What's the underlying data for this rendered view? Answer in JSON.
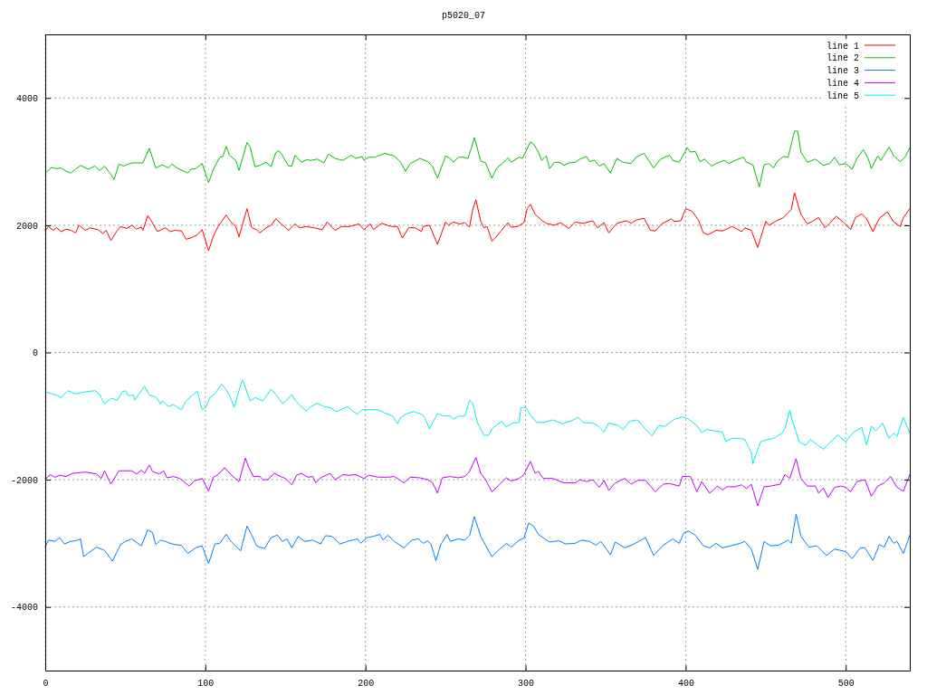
{
  "chart_data": {
    "type": "line",
    "title": "p5020_07",
    "xlim": [
      0,
      540
    ],
    "ylim": [
      -5000,
      5000
    ],
    "xticks": [
      0,
      100,
      200,
      300,
      400,
      500
    ],
    "yticks": [
      -4000,
      -2000,
      0,
      2000,
      4000
    ],
    "grid": true,
    "legend": "top right",
    "series": [
      {
        "name": "line 1",
        "color": "#ff0000",
        "x": [
          0,
          2,
          5,
          7,
          10,
          13,
          16,
          19,
          21,
          25,
          28,
          33,
          36,
          38,
          41,
          45,
          47,
          51,
          54,
          57,
          60,
          61,
          64,
          66,
          70,
          75,
          78,
          81,
          85,
          88,
          92,
          95,
          98,
          102,
          105,
          108,
          113,
          116,
          119,
          121,
          126,
          129,
          132,
          134,
          136,
          138,
          141,
          144,
          147,
          152,
          156,
          159,
          163,
          168,
          173,
          176,
          181,
          185,
          190,
          196,
          199,
          203,
          205,
          210,
          216,
          220,
          223,
          227,
          231,
          235,
          236,
          240,
          245,
          250,
          252,
          255,
          259,
          262,
          265,
          267,
          269,
          272,
          274,
          276,
          279,
          281,
          285,
          289,
          291,
          295,
          299,
          301,
          303,
          306,
          310,
          313,
          318,
          322,
          327,
          331,
          336,
          342,
          345,
          349,
          352,
          357,
          363,
          366,
          369,
          374,
          378,
          381,
          385,
          391,
          393,
          397,
          400,
          404,
          408,
          411,
          414,
          419,
          423,
          429,
          435,
          437,
          441,
          445,
          450,
          452,
          456,
          461,
          466,
          468,
          472,
          476,
          479,
          483,
          487,
          490,
          494,
          499,
          503,
          506,
          510,
          513,
          517,
          521,
          526,
          530,
          534,
          536,
          540
        ],
        "values": [
          1910,
          1980,
          1920,
          1960,
          1900,
          1940,
          1920,
          1880,
          2000,
          1920,
          1960,
          1930,
          1870,
          1920,
          1760,
          1920,
          1980,
          1950,
          2000,
          1940,
          1970,
          1920,
          2150,
          2080,
          1900,
          1960,
          1900,
          1920,
          1910,
          1780,
          1810,
          1850,
          1930,
          1600,
          1830,
          1980,
          2160,
          2050,
          1980,
          1820,
          2260,
          1960,
          1930,
          1880,
          1920,
          1960,
          2000,
          2100,
          2030,
          1920,
          2020,
          1960,
          1980,
          1960,
          1930,
          2050,
          1920,
          1980,
          1980,
          2020,
          1930,
          2020,
          1930,
          2030,
          1980,
          1980,
          1800,
          1960,
          1960,
          1900,
          1980,
          2000,
          1700,
          2050,
          2000,
          2050,
          2020,
          2040,
          1970,
          2250,
          2400,
          2060,
          1960,
          1980,
          1750,
          1800,
          1920,
          2040,
          1970,
          1980,
          2040,
          2260,
          2330,
          2170,
          2080,
          2030,
          2000,
          2040,
          1950,
          2050,
          2030,
          2070,
          1960,
          2040,
          1880,
          2030,
          2070,
          2030,
          2080,
          2110,
          1920,
          1910,
          2020,
          2100,
          2060,
          2070,
          2260,
          2220,
          2080,
          1880,
          1850,
          1920,
          1910,
          1980,
          1900,
          1960,
          1920,
          1650,
          2060,
          2000,
          2060,
          2120,
          2250,
          2510,
          2170,
          2020,
          2060,
          2120,
          1960,
          2030,
          2140,
          2040,
          1930,
          2120,
          2180,
          2100,
          1900,
          2110,
          2210,
          2050,
          1980,
          2120,
          2260
        ]
      },
      {
        "name": "line 2",
        "color": "#00c000",
        "x": [
          0,
          4,
          7,
          10,
          13,
          16,
          22,
          27,
          31,
          34,
          37,
          40,
          43,
          46,
          49,
          54,
          61,
          65,
          69,
          73,
          77,
          79,
          83,
          89,
          91,
          94,
          98,
          102,
          105,
          109,
          111,
          113,
          115,
          119,
          121,
          126,
          128,
          131,
          134,
          138,
          141,
          144,
          146,
          148,
          152,
          154,
          156,
          160,
          163,
          166,
          170,
          174,
          177,
          181,
          186,
          191,
          194,
          198,
          199,
          202,
          206,
          212,
          218,
          222,
          225,
          228,
          234,
          239,
          242,
          245,
          250,
          253,
          255,
          258,
          261,
          264,
          266,
          268,
          272,
          275,
          279,
          282,
          286,
          289,
          291,
          296,
          298,
          303,
          305,
          308,
          310,
          313,
          315,
          318,
          321,
          324,
          327,
          331,
          334,
          338,
          340,
          343,
          346,
          349,
          353,
          357,
          361,
          366,
          369,
          374,
          380,
          384,
          387,
          390,
          392,
          396,
          401,
          403,
          406,
          409,
          412,
          416,
          420,
          424,
          427,
          431,
          436,
          438,
          442,
          446,
          449,
          452,
          455,
          457,
          461,
          464,
          468,
          470,
          472,
          476,
          481,
          486,
          490,
          493,
          496,
          500,
          504,
          507,
          511,
          514,
          516,
          520,
          522,
          527,
          530,
          534,
          537,
          540
        ],
        "values": [
          2820,
          2910,
          2890,
          2900,
          2850,
          2820,
          2940,
          2880,
          2930,
          2860,
          2930,
          2830,
          2720,
          2960,
          2930,
          2980,
          2980,
          3210,
          2900,
          2950,
          2900,
          2960,
          2890,
          2820,
          2880,
          2890,
          2970,
          2670,
          2880,
          3070,
          3080,
          3240,
          3100,
          3020,
          2860,
          3300,
          3230,
          2920,
          2940,
          2990,
          2920,
          3140,
          3170,
          3100,
          2930,
          2930,
          3100,
          2990,
          3030,
          3020,
          3040,
          2980,
          3120,
          3050,
          3020,
          3100,
          3050,
          3080,
          3020,
          3070,
          3070,
          3130,
          3090,
          2990,
          2850,
          2970,
          3050,
          3000,
          2920,
          2740,
          3090,
          3050,
          2990,
          3070,
          3070,
          3050,
          3200,
          3380,
          3010,
          2980,
          2740,
          2900,
          2980,
          3060,
          2990,
          3070,
          3050,
          3310,
          3280,
          3150,
          3020,
          3090,
          2890,
          2990,
          2990,
          2940,
          2980,
          2990,
          3040,
          3080,
          3000,
          3020,
          2930,
          2970,
          2820,
          3050,
          2990,
          2970,
          3070,
          3130,
          2900,
          3030,
          3070,
          3100,
          3020,
          2990,
          3220,
          3150,
          3160,
          3000,
          3040,
          2930,
          2980,
          3020,
          2970,
          3020,
          3070,
          2990,
          2950,
          2600,
          2950,
          2970,
          2900,
          3000,
          3080,
          3070,
          3480,
          3480,
          3150,
          2990,
          3040,
          2940,
          2970,
          3070,
          2950,
          2970,
          2880,
          3050,
          3190,
          3050,
          2890,
          3090,
          3020,
          3230,
          3090,
          3000,
          3070,
          3220
        ]
      },
      {
        "name": "line 3",
        "color": "#0080ff",
        "x": [
          0,
          2,
          6,
          9,
          12,
          16,
          19,
          22,
          24,
          27,
          32,
          37,
          42,
          47,
          50,
          54,
          60,
          64,
          67,
          69,
          72,
          75,
          78,
          81,
          85,
          89,
          94,
          98,
          102,
          106,
          109,
          113,
          116,
          122,
          126,
          129,
          132,
          134,
          137,
          141,
          145,
          148,
          151,
          154,
          158,
          162,
          167,
          172,
          175,
          179,
          184,
          190,
          195,
          197,
          201,
          205,
          209,
          211,
          214,
          218,
          224,
          229,
          233,
          236,
          239,
          241,
          244,
          247,
          251,
          253,
          258,
          262,
          265,
          268,
          272,
          275,
          279,
          283,
          288,
          291,
          296,
          299,
          302,
          305,
          308,
          312,
          315,
          321,
          325,
          331,
          335,
          340,
          344,
          347,
          353,
          356,
          362,
          367,
          375,
          380,
          386,
          392,
          396,
          399,
          402,
          406,
          411,
          415,
          419,
          423,
          428,
          434,
          437,
          441,
          445,
          449,
          453,
          458,
          464,
          466,
          469,
          472,
          477,
          482,
          488,
          493,
          500,
          504,
          509,
          512,
          517,
          521,
          524,
          527,
          530,
          532,
          536,
          540
        ],
        "values": [
          -3060,
          -2950,
          -2970,
          -2910,
          -3010,
          -2970,
          -2960,
          -2930,
          -3210,
          -3150,
          -3060,
          -3110,
          -3280,
          -3020,
          -2970,
          -2930,
          -3040,
          -2790,
          -2830,
          -3020,
          -2950,
          -2970,
          -3000,
          -3020,
          -3030,
          -3160,
          -3070,
          -3040,
          -3320,
          -3010,
          -3000,
          -2860,
          -2970,
          -3120,
          -2730,
          -2870,
          -3040,
          -3060,
          -3080,
          -2910,
          -2870,
          -2970,
          -2930,
          -3070,
          -2890,
          -2970,
          -2950,
          -3010,
          -2880,
          -2890,
          -3010,
          -2960,
          -2930,
          -3000,
          -2910,
          -2890,
          -2860,
          -2950,
          -2870,
          -2970,
          -3070,
          -2950,
          -2930,
          -3000,
          -2960,
          -3020,
          -3270,
          -3020,
          -2860,
          -2970,
          -2930,
          -2950,
          -2880,
          -2580,
          -2890,
          -3030,
          -3210,
          -3110,
          -3000,
          -3060,
          -2950,
          -2920,
          -2680,
          -2730,
          -2860,
          -2930,
          -2980,
          -2960,
          -3010,
          -3000,
          -2950,
          -2970,
          -3030,
          -2970,
          -3180,
          -2980,
          -3070,
          -3020,
          -2910,
          -3190,
          -3030,
          -2930,
          -3000,
          -2830,
          -2810,
          -2870,
          -3040,
          -3070,
          -3000,
          -3070,
          -3040,
          -3000,
          -2970,
          -3090,
          -3410,
          -2970,
          -3040,
          -3030,
          -2950,
          -3000,
          -2540,
          -2890,
          -3060,
          -3040,
          -3190,
          -3090,
          -3130,
          -3240,
          -3070,
          -3070,
          -3270,
          -3020,
          -3060,
          -2890,
          -3000,
          -2970,
          -3160,
          -2870
        ]
      },
      {
        "name": "line 4",
        "color": "#c000ff",
        "x": [
          0,
          3,
          6,
          9,
          13,
          17,
          25,
          32,
          35,
          37,
          41,
          46,
          54,
          57,
          60,
          62,
          65,
          67,
          71,
          74,
          76,
          80,
          84,
          90,
          93,
          98,
          102,
          105,
          108,
          112,
          116,
          121,
          125,
          127,
          130,
          134,
          136,
          139,
          143,
          147,
          150,
          154,
          157,
          160,
          164,
          167,
          169,
          172,
          178,
          181,
          186,
          190,
          194,
          199,
          202,
          208,
          214,
          218,
          224,
          228,
          234,
          239,
          242,
          245,
          248,
          253,
          258,
          262,
          265,
          269,
          272,
          275,
          279,
          284,
          288,
          291,
          296,
          299,
          303,
          306,
          308,
          311,
          314,
          317,
          324,
          331,
          334,
          338,
          342,
          346,
          349,
          352,
          356,
          362,
          366,
          370,
          375,
          381,
          386,
          390,
          396,
          398,
          403,
          407,
          410,
          415,
          420,
          423,
          426,
          431,
          435,
          438,
          441,
          445,
          449,
          453,
          459,
          462,
          465,
          469,
          472,
          476,
          481,
          483,
          486,
          489,
          493,
          497,
          500,
          503,
          507,
          512,
          516,
          520,
          524,
          528,
          532,
          536,
          540
        ],
        "values": [
          -2000,
          -1920,
          -1960,
          -1930,
          -1950,
          -1900,
          -1880,
          -1910,
          -1980,
          -1860,
          -2070,
          -1860,
          -1860,
          -1910,
          -1850,
          -1900,
          -1770,
          -1870,
          -1910,
          -1860,
          -1970,
          -1950,
          -1980,
          -2100,
          -2020,
          -1980,
          -2180,
          -1960,
          -1920,
          -1810,
          -1920,
          -2030,
          -1660,
          -1800,
          -1950,
          -1950,
          -2000,
          -2000,
          -1900,
          -1950,
          -1980,
          -2080,
          -1930,
          -1900,
          -1960,
          -1950,
          -2050,
          -1970,
          -1900,
          -2000,
          -1920,
          -1930,
          -1920,
          -1980,
          -1930,
          -1960,
          -1960,
          -1950,
          -2050,
          -1960,
          -1970,
          -2000,
          -2050,
          -2210,
          -1970,
          -1950,
          -1970,
          -1950,
          -1870,
          -1650,
          -1900,
          -2000,
          -2190,
          -2070,
          -1970,
          -2020,
          -1980,
          -1920,
          -1710,
          -1900,
          -1870,
          -1980,
          -1980,
          -1980,
          -2050,
          -2050,
          -2000,
          -2030,
          -2000,
          -2120,
          -2010,
          -2170,
          -2050,
          -1980,
          -2070,
          -2010,
          -2010,
          -2190,
          -2070,
          -2060,
          -2100,
          -1950,
          -1950,
          -2190,
          -2030,
          -2210,
          -2100,
          -2160,
          -2110,
          -2110,
          -2080,
          -2140,
          -2070,
          -2410,
          -2110,
          -2100,
          -2070,
          -1920,
          -1980,
          -1670,
          -1980,
          -2100,
          -2100,
          -2210,
          -2130,
          -2280,
          -2120,
          -2100,
          -2120,
          -2190,
          -2030,
          -2000,
          -2260,
          -2100,
          -2050,
          -1950,
          -2120,
          -2180,
          -1920
        ]
      },
      {
        "name": "line 5",
        "color": "#00eeee",
        "x": [
          0,
          4,
          7,
          10,
          14,
          19,
          25,
          31,
          34,
          37,
          41,
          45,
          48,
          50,
          52,
          55,
          56,
          58,
          62,
          65,
          69,
          72,
          73,
          77,
          80,
          85,
          88,
          92,
          95,
          98,
          100,
          103,
          106,
          110,
          112,
          115,
          118,
          123,
          124,
          128,
          131,
          133,
          136,
          141,
          144,
          148,
          150,
          154,
          156,
          159,
          163,
          166,
          170,
          174,
          178,
          182,
          186,
          189,
          192,
          195,
          198,
          203,
          208,
          212,
          217,
          220,
          222,
          226,
          230,
          235,
          237,
          240,
          245,
          249,
          253,
          255,
          258,
          262,
          265,
          267,
          270,
          274,
          277,
          279,
          285,
          288,
          292,
          296,
          297,
          300,
          303,
          307,
          311,
          317,
          323,
          329,
          333,
          336,
          342,
          345,
          349,
          352,
          358,
          361,
          365,
          370,
          375,
          379,
          383,
          387,
          393,
          398,
          402,
          407,
          410,
          413,
          418,
          423,
          425,
          429,
          434,
          437,
          441,
          442,
          445,
          447,
          451,
          455,
          460,
          462,
          465,
          467,
          471,
          475,
          478,
          482,
          486,
          490,
          495,
          500,
          505,
          510,
          513,
          516,
          519,
          523,
          527,
          530,
          532,
          536,
          540
        ],
        "values": [
          -620,
          -650,
          -670,
          -710,
          -600,
          -650,
          -620,
          -600,
          -660,
          -810,
          -720,
          -750,
          -620,
          -600,
          -680,
          -670,
          -750,
          -670,
          -530,
          -670,
          -700,
          -810,
          -760,
          -850,
          -820,
          -900,
          -760,
          -670,
          -610,
          -900,
          -870,
          -700,
          -650,
          -500,
          -550,
          -670,
          -860,
          -430,
          -480,
          -760,
          -710,
          -730,
          -760,
          -580,
          -660,
          -800,
          -770,
          -660,
          -750,
          -830,
          -920,
          -850,
          -800,
          -850,
          -870,
          -930,
          -880,
          -850,
          -920,
          -970,
          -900,
          -900,
          -900,
          -950,
          -1000,
          -1120,
          -1020,
          -960,
          -930,
          -970,
          -1020,
          -1200,
          -960,
          -1000,
          -1000,
          -1050,
          -1000,
          -1000,
          -750,
          -800,
          -1110,
          -1300,
          -1300,
          -1200,
          -1080,
          -1170,
          -1110,
          -1100,
          -870,
          -860,
          -980,
          -1100,
          -1100,
          -1060,
          -1120,
          -1070,
          -1020,
          -1100,
          -1110,
          -1150,
          -1250,
          -1110,
          -1150,
          -1210,
          -1080,
          -1060,
          -1210,
          -1310,
          -1150,
          -1160,
          -1050,
          -1010,
          -1050,
          -1150,
          -1260,
          -1210,
          -1230,
          -1250,
          -1400,
          -1350,
          -1350,
          -1370,
          -1570,
          -1750,
          -1520,
          -1400,
          -1370,
          -1350,
          -1270,
          -1200,
          -910,
          -1100,
          -1410,
          -1460,
          -1370,
          -1450,
          -1520,
          -1420,
          -1300,
          -1400,
          -1250,
          -1180,
          -1450,
          -1160,
          -1230,
          -1110,
          -1350,
          -1270,
          -1320,
          -1020,
          -1270
        ]
      }
    ]
  }
}
